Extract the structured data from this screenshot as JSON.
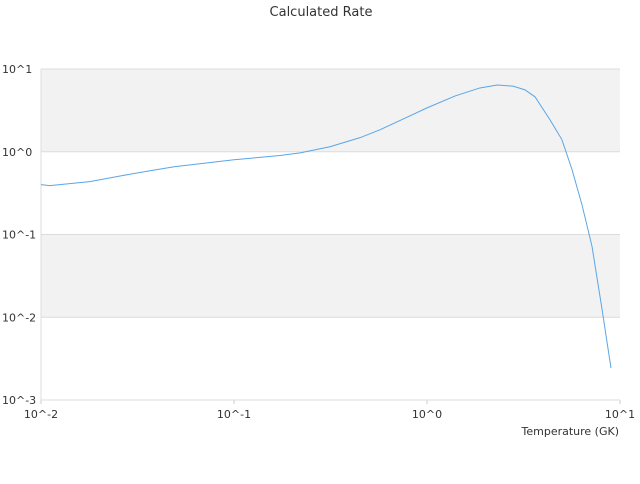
{
  "chart_data": {
    "type": "line",
    "title": "Calculated Rate",
    "x_label": "Temperature (GK)",
    "log_x": true,
    "log_y": true,
    "grid": true,
    "x": [
      0.01,
      0.0111,
      0.0179,
      0.0257,
      0.0367,
      0.0495,
      0.1,
      0.173,
      0.22,
      0.314,
      0.45,
      0.57,
      0.817,
      1.0,
      1.4,
      1.88,
      2.31,
      2.79,
      3.22,
      3.63,
      4.34,
      5.0,
      5.64,
      6.35,
      7.16,
      8.07,
      8.98
    ],
    "series": [
      {
        "color": "#5aa5e6",
        "values": [
          0.4,
          0.39,
          0.435,
          0.51,
          0.59,
          0.66,
          0.8,
          0.9,
          0.97,
          1.15,
          1.48,
          1.84,
          2.72,
          3.39,
          4.73,
          5.9,
          6.4,
          6.2,
          5.6,
          4.6,
          2.43,
          1.4,
          0.61,
          0.23,
          0.072,
          0.0125,
          0.00243
        ]
      }
    ],
    "xlim": [
      0.01,
      10
    ],
    "xticks": [
      {
        "value": 0.01,
        "label": "10^-2"
      },
      {
        "value": 0.1,
        "label": "10^-1"
      },
      {
        "value": 1,
        "label": "10^0"
      },
      {
        "value": 10,
        "label": "10^1"
      }
    ],
    "ylim": [
      0.001,
      10
    ],
    "yticks": [
      {
        "value": 0.001,
        "label": "10^-3"
      },
      {
        "value": 0.01,
        "label": "10^-2"
      },
      {
        "value": 0.1,
        "label": "10^-1"
      },
      {
        "value": 1,
        "label": "10^0"
      },
      {
        "value": 10,
        "label": "10^1"
      }
    ]
  }
}
